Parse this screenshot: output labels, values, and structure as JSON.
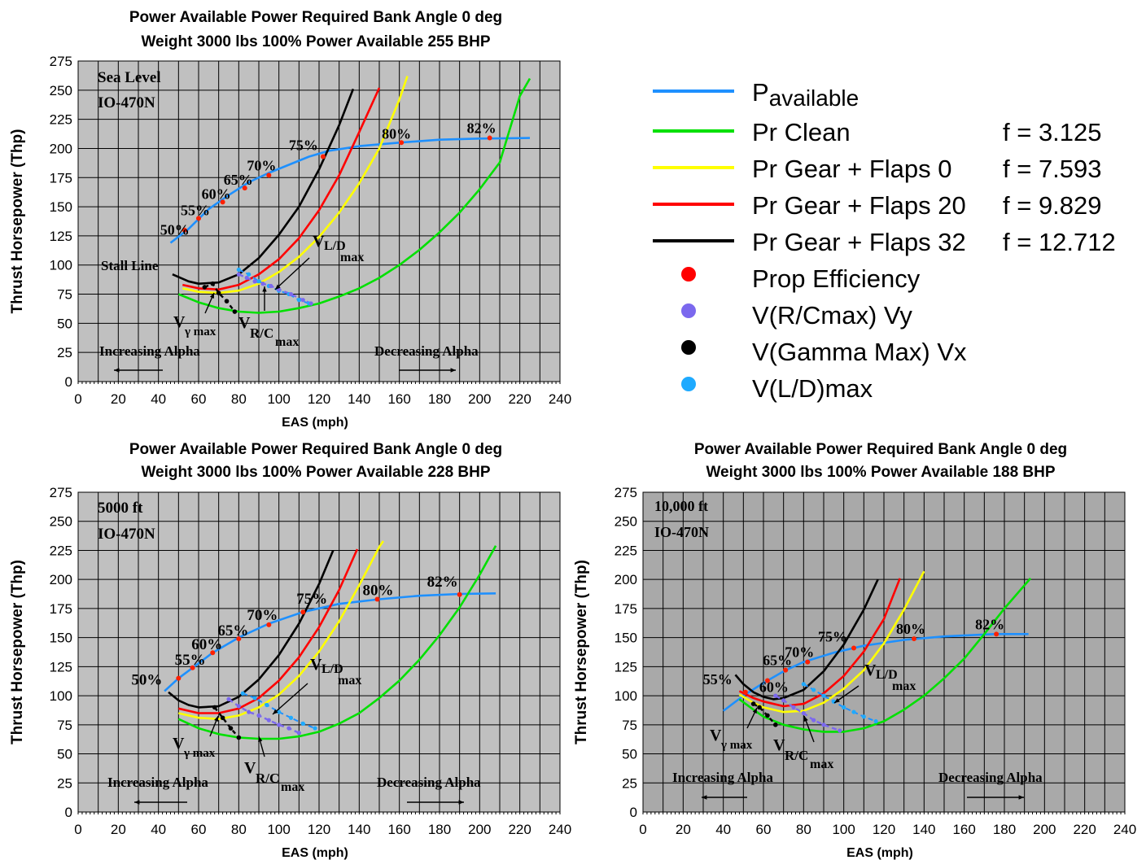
{
  "chart_data": [
    {
      "type": "line",
      "title": "Power Available Power Required Bank Angle 0 deg",
      "subtitle": "Weight 3000 lbs 100% Power Available 255 BHP",
      "xlabel": "EAS (mph)",
      "ylabel": "Thrust Horsepower (Thp)",
      "xlim": [
        0,
        240
      ],
      "ylim": [
        0,
        275
      ],
      "xticks": [
        "0",
        "20",
        "40",
        "60",
        "80",
        "100",
        "120",
        "140",
        "160",
        "180",
        "200",
        "220",
        "240"
      ],
      "yticks": [
        "0",
        "25",
        "50",
        "75",
        "100",
        "125",
        "150",
        "175",
        "200",
        "225",
        "250",
        "275"
      ],
      "background": "#c0c0c0",
      "notes": [
        "Sea Level",
        "IO-470N"
      ],
      "stall_label": "Stall Line",
      "alpha_left": "Increasing Alpha",
      "alpha_right": "Decreasing Alpha",
      "series": [
        {
          "name": "Pavailable",
          "color": "#1e90ff",
          "x": [
            46,
            55,
            65,
            75,
            85,
            95,
            105,
            115,
            125,
            140,
            160,
            180,
            200,
            225
          ],
          "y": [
            119,
            131,
            148,
            160,
            171,
            179,
            186,
            193,
            198,
            202,
            205,
            207.5,
            208.5,
            209
          ]
        },
        {
          "name": "Pr Clean",
          "color": "#00e000",
          "x": [
            50,
            60,
            70,
            80,
            90,
            100,
            110,
            120,
            130,
            140,
            150,
            160,
            170,
            180,
            190,
            200,
            210,
            220,
            225
          ],
          "y": [
            75,
            68,
            63,
            60,
            59,
            60,
            63,
            67,
            73,
            80,
            89,
            100,
            113,
            128,
            145,
            165,
            188,
            245,
            260
          ]
        },
        {
          "name": "Pr Gear + Flaps 0",
          "color": "#ffff00",
          "x": [
            52,
            60,
            70,
            80,
            90,
            100,
            110,
            120,
            130,
            140,
            150,
            160,
            164
          ],
          "y": [
            80,
            77,
            76,
            78,
            84,
            94,
            107,
            124,
            145,
            170,
            200,
            242,
            262
          ]
        },
        {
          "name": "Pr Gear + Flaps 20",
          "color": "#ff0000",
          "x": [
            52,
            60,
            70,
            80,
            90,
            100,
            110,
            120,
            130,
            140,
            150
          ],
          "y": [
            83,
            80,
            79,
            83,
            92,
            105,
            123,
            147,
            177,
            214,
            252
          ]
        },
        {
          "name": "Pr Gear + Flaps 32",
          "color": "#000000",
          "x": [
            47,
            55,
            60,
            70,
            80,
            90,
            100,
            110,
            120,
            130,
            137
          ],
          "y": [
            92,
            86,
            84,
            85,
            92,
            106,
            126,
            150,
            182,
            220,
            251
          ]
        }
      ],
      "prop_efficiency": {
        "x": [
          53,
          60,
          72,
          83,
          95,
          122,
          161,
          205
        ],
        "y": [
          130,
          140,
          154,
          166,
          177,
          193,
          205,
          209
        ],
        "labels": [
          "50%",
          "55%",
          "60%",
          "65%",
          "70%",
          "75%",
          "80%",
          "82%"
        ]
      },
      "v_rc_max": {
        "x": [
          80,
          84,
          88,
          92,
          96,
          100,
          106,
          112,
          116
        ],
        "y": [
          92,
          89,
          86,
          84,
          82,
          79,
          75,
          70,
          67
        ]
      },
      "v_gamma_max": {
        "x": [
          63,
          67,
          70,
          74,
          78
        ],
        "y": [
          81,
          84,
          76,
          69,
          60
        ]
      },
      "v_ld_max": {
        "x": [
          80,
          85,
          90,
          95,
          100,
          105,
          110,
          115
        ],
        "y": [
          96,
          92,
          86,
          82,
          78,
          75,
          70,
          67
        ]
      },
      "annotations": [
        "V",
        "γ max",
        "V",
        "R/C",
        "max",
        "V",
        "L/D",
        "max"
      ]
    },
    {
      "type": "line",
      "title": "Power Available Power Required Bank Angle 0 deg",
      "subtitle": "Weight 3000 lbs 100% Power Available 228 BHP",
      "xlabel": "EAS (mph)",
      "ylabel": "Thrust Horsepower (Thp)",
      "xlim": [
        0,
        240
      ],
      "ylim": [
        0,
        275
      ],
      "xticks": [
        "0",
        "20",
        "40",
        "60",
        "80",
        "100",
        "120",
        "140",
        "160",
        "180",
        "200",
        "220",
        "240"
      ],
      "yticks": [
        "0",
        "25",
        "50",
        "75",
        "100",
        "125",
        "150",
        "175",
        "200",
        "225",
        "250",
        "275"
      ],
      "background": "#c0c0c0",
      "notes": [
        "5000 ft",
        "IO-470N"
      ],
      "alpha_left": "Increasing Alpha",
      "alpha_right": "Decreasing Alpha",
      "series": [
        {
          "name": "Pavailable",
          "color": "#1e90ff",
          "x": [
            43,
            50,
            57,
            67,
            80,
            95,
            112,
            130,
            150,
            170,
            190,
            208
          ],
          "y": [
            104,
            115,
            124,
            137,
            150,
            162,
            172,
            179,
            183,
            186,
            187.5,
            188
          ]
        },
        {
          "name": "Pr Clean",
          "color": "#00e000",
          "x": [
            50,
            60,
            70,
            80,
            90,
            100,
            110,
            120,
            130,
            140,
            150,
            160,
            170,
            180,
            190,
            200,
            208
          ],
          "y": [
            80,
            72,
            67,
            64,
            63,
            63,
            65,
            69,
            76,
            85,
            98,
            113,
            131,
            152,
            176,
            204,
            229
          ]
        },
        {
          "name": "Pr Gear + Flaps 0",
          "color": "#ffff00",
          "x": [
            50,
            60,
            70,
            80,
            90,
            100,
            110,
            120,
            130,
            140,
            150,
            152
          ],
          "y": [
            85,
            81,
            80,
            83,
            90,
            101,
            117,
            138,
            164,
            195,
            228,
            233
          ]
        },
        {
          "name": "Pr Gear + Flaps 20",
          "color": "#ff0000",
          "x": [
            50,
            60,
            70,
            80,
            90,
            100,
            110,
            120,
            130,
            139
          ],
          "y": [
            89,
            85,
            85,
            89,
            98,
            113,
            133,
            159,
            191,
            226
          ]
        },
        {
          "name": "Pr Gear + Flaps 32",
          "color": "#000000",
          "x": [
            45,
            50,
            55,
            60,
            70,
            80,
            90,
            100,
            110,
            120,
            127
          ],
          "y": [
            103,
            96,
            92,
            90,
            91,
            99,
            114,
            135,
            162,
            196,
            225
          ]
        }
      ],
      "prop_efficiency": {
        "x": [
          50,
          57,
          67,
          80,
          95,
          112,
          149,
          190
        ],
        "y": [
          115,
          124,
          137,
          149,
          161,
          172,
          183,
          187
        ],
        "labels": [
          "50%",
          "55%",
          "60%",
          "65%",
          "70%",
          "75%",
          "80%",
          "82%"
        ]
      },
      "v_rc_max": {
        "x": [
          75,
          80,
          85,
          90,
          95,
          100,
          105,
          110
        ],
        "y": [
          97,
          91,
          86,
          83,
          79,
          75,
          72,
          68
        ]
      },
      "v_gamma_max": {
        "x": [
          68,
          72,
          76,
          80
        ],
        "y": [
          90,
          81,
          72,
          64
        ]
      },
      "v_ld_max": {
        "x": [
          82,
          88,
          94,
          100,
          106,
          112,
          118
        ],
        "y": [
          102,
          98,
          92,
          86,
          81,
          76,
          72
        ]
      },
      "annotations": [
        "V",
        "γ max",
        "V",
        "R/C",
        "max",
        "V",
        "L/D",
        "max"
      ]
    },
    {
      "type": "line",
      "title": "Power Available Power Required Bank Angle 0 deg",
      "subtitle": "Weight 3000 lbs 100% Power Available 188 BHP",
      "xlabel": "EAS (mph)",
      "ylabel": "Thrust Horsepower (Thp)",
      "xlim": [
        0,
        240
      ],
      "ylim": [
        0,
        275
      ],
      "xticks": [
        "0",
        "20",
        "40",
        "60",
        "80",
        "100",
        "120",
        "140",
        "160",
        "180",
        "200",
        "220",
        "240"
      ],
      "yticks": [
        "0",
        "25",
        "50",
        "75",
        "100",
        "125",
        "150",
        "175",
        "200",
        "225",
        "250",
        "275"
      ],
      "background": "#a9a9a9",
      "notes": [
        "10,000 ft",
        "IO-470N"
      ],
      "alpha_left": "Increasing Alpha",
      "alpha_right": "Decreasing Alpha",
      "series": [
        {
          "name": "Pavailable",
          "color": "#1e90ff",
          "x": [
            40,
            50,
            60,
            70,
            80,
            95,
            110,
            130,
            150,
            175,
            192
          ],
          "y": [
            87,
            100,
            111,
            121,
            129,
            137,
            143,
            148,
            151,
            153,
            153
          ]
        },
        {
          "name": "Pr Clean",
          "color": "#00e000",
          "x": [
            48,
            55,
            60,
            70,
            80,
            90,
            100,
            110,
            120,
            130,
            140,
            150,
            160,
            170,
            180,
            193
          ],
          "y": [
            97,
            88,
            82,
            75,
            71,
            69,
            69,
            72,
            78,
            88,
            100,
            115,
            132,
            153,
            175,
            201
          ]
        },
        {
          "name": "Pr Gear + Flaps 0",
          "color": "#ffff00",
          "x": [
            48,
            55,
            60,
            70,
            80,
            90,
            100,
            110,
            120,
            130,
            140
          ],
          "y": [
            101,
            94,
            90,
            86,
            87,
            94,
            106,
            122,
            145,
            174,
            207
          ]
        },
        {
          "name": "Pr Gear + Flaps 20",
          "color": "#ff0000",
          "x": [
            48,
            55,
            60,
            70,
            80,
            90,
            100,
            110,
            120,
            128
          ],
          "y": [
            104,
            98,
            95,
            91,
            93,
            102,
            117,
            138,
            166,
            201
          ]
        },
        {
          "name": "Pr Gear + Flaps 32",
          "color": "#000000",
          "x": [
            46,
            50,
            55,
            60,
            65,
            70,
            80,
            90,
            100,
            110,
            117
          ],
          "y": [
            118,
            110,
            103,
            99,
            97,
            98,
            105,
            121,
            144,
            174,
            200
          ]
        }
      ],
      "prop_efficiency": {
        "x": [
          51,
          62,
          71,
          82,
          105,
          135,
          176
        ],
        "y": [
          103,
          113,
          122,
          129,
          141,
          149,
          153
        ],
        "labels": [
          "55%",
          "60%",
          "65%",
          "70%",
          "75%",
          "80%",
          "82%"
        ]
      },
      "v_rc_max": {
        "x": [
          66,
          70,
          75,
          80,
          85,
          90,
          98
        ],
        "y": [
          100,
          96,
          90,
          85,
          79,
          75,
          70
        ]
      },
      "v_gamma_max": {
        "x": [
          55,
          58,
          62,
          66
        ],
        "y": [
          93,
          90,
          83,
          75
        ]
      },
      "v_ld_max": {
        "x": [
          80,
          85,
          90,
          95,
          100,
          105,
          110,
          116
        ],
        "y": [
          110,
          105,
          100,
          95,
          90,
          86,
          82,
          78
        ]
      },
      "annotations": [
        "V",
        "γ max",
        "V",
        "R/C",
        "max",
        "V",
        "L/D",
        "max"
      ]
    }
  ],
  "legend": {
    "items": [
      {
        "kind": "line",
        "color": "#1e90ff",
        "label": "P",
        "label_sub": "available",
        "f": ""
      },
      {
        "kind": "line",
        "color": "#00e000",
        "label": "Pr Clean",
        "f": "f = 3.125"
      },
      {
        "kind": "line",
        "color": "#ffff00",
        "label": "Pr Gear + Flaps 0",
        "f": "f = 7.593"
      },
      {
        "kind": "line",
        "color": "#ff0000",
        "label": "Pr Gear + Flaps 20",
        "f": "f = 9.829"
      },
      {
        "kind": "line",
        "color": "#000000",
        "label": "Pr Gear + Flaps 32",
        "f": "f = 12.712"
      },
      {
        "kind": "dot",
        "color": "#ff0000",
        "label": "Prop Efficiency",
        "f": ""
      },
      {
        "kind": "dot",
        "color": "#7b68ee",
        "label": "V(R/Cmax)  Vy",
        "f": ""
      },
      {
        "kind": "dot",
        "color": "#000000",
        "label": "V(Gamma Max)   Vx",
        "f": ""
      },
      {
        "kind": "dot",
        "color": "#1eaaff",
        "label": "V(L/D)max",
        "f": ""
      }
    ]
  }
}
